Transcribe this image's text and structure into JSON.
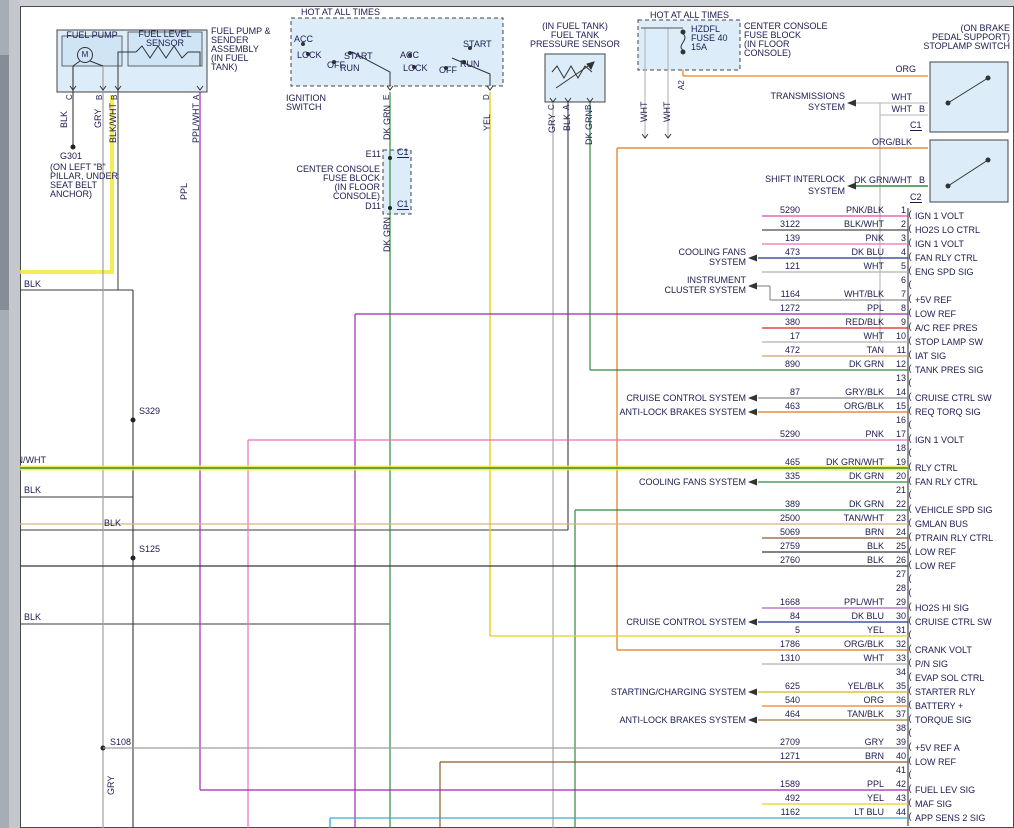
{
  "wire_colors": {
    "PNK/BLK": "#e8489c",
    "BLK/WHT": "#4a4a4a",
    "PNK": "#f06eb4",
    "DK BLU": "#20318d",
    "WHT": "#b0b0b0",
    "WHT/BLK": "#909090",
    "PPL": "#9c27b0",
    "RED/BLK": "#e02020",
    "TAN": "#cfa06a",
    "DK GRN": "#2e8b3d",
    "GRY/BLK": "#8a8a8a",
    "ORG/BLK": "#e07818",
    "DK GRN/WHT": "#2e8b3d",
    "TAN/WHT": "#dbb27e",
    "BRN": "#8a5a2a",
    "BLK": "#383838",
    "PPL/WHT": "#b45ec8",
    "YEL": "#e3d11f",
    "ORG": "#f08020",
    "YEL/BLK": "#cdbb1a",
    "TAN/BLK": "#a8803e",
    "GRY": "#9e9e9e",
    "LT BLU": "#35aede",
    "highlight": "#f0ea3c",
    "component_fill": "#d8eaf8",
    "text": "#1c1c50"
  },
  "fuel_assembly": {
    "pump_label": "FUEL PUMP",
    "motor": "M",
    "sensor_label_1": "FUEL LEVEL",
    "sensor_label_2": "SENSOR",
    "assembly_1": "FUEL PUMP &",
    "assembly_2": "SENDER",
    "assembly_3": "ASSEMBLY",
    "assembly_4": "(IN FUEL",
    "assembly_5": "TANK)",
    "pin_c": "C",
    "pin_b1": "B",
    "pin_b2": "B",
    "pin_a": "A",
    "w_blk": "BLK",
    "w_gry": "GRY",
    "w_blkwht": "BLK/WHT",
    "w_pplwht": "PPL/WHT",
    "w_ppl": "PPL",
    "ground_id": "G301",
    "ground_1": "(ON LEFT \"B\"",
    "ground_2": "PILLAR, UNDER",
    "ground_3": "SEAT BELT",
    "ground_4": "ANCHOR)"
  },
  "ignition": {
    "hot": "HOT AT ALL TIMES",
    "acc1": "ACC",
    "lock1": "LOCK",
    "off1": "OFF",
    "start1": "START",
    "run1": "RUN",
    "acc2": "ACC",
    "lock2": "LOCK",
    "off2": "OFF",
    "run2": "RUN",
    "start2": "START",
    "label_1": "IGNITION",
    "label_2": "SWITCH",
    "pin_e": "E",
    "pin_d": "D",
    "w_dkgrn": "DK GRN",
    "w_yel": "YEL"
  },
  "mid_fuse": {
    "l1": "CENTER CONSOLE",
    "l2": "FUSE BLOCK",
    "l3": "(IN FLOOR",
    "l4": "CONSOLE)",
    "e11": "E11",
    "c1_top": "C1",
    "d11": "D11",
    "c1_bot": "C1",
    "w_dkgrn": "DK GRN"
  },
  "pressure_sensor": {
    "l1": "(IN FUEL TANK)",
    "l2": "FUEL TANK",
    "l3": "PRESSURE SENSOR",
    "pin_c": "C",
    "pin_a": "A",
    "pin_b": "B",
    "w_gry": "GRY",
    "w_blk": "BLK",
    "w_dkgrn": "DK GRN"
  },
  "top_fuse": {
    "hot": "HOT AT ALL TIMES",
    "f1": "HZDFL",
    "f2": "FUSE 40",
    "f3": "15A",
    "l1": "CENTER CONSOLE",
    "l2": "FUSE BLOCK",
    "l3": "(IN FLOOR",
    "l4": "CONSOLE)",
    "w_wht1": "WHT",
    "w_wht2": "WHT",
    "pin_a2": "A2",
    "w_org": "ORG"
  },
  "stoplamp": {
    "l1": "(ON BRAKE",
    "l2": "PEDAL SUPPORT)",
    "l3": "STOPLAMP SWITCH",
    "w_wht1": "WHT",
    "w_wht2": "WHT",
    "pin_b1": "B",
    "c1": "C1",
    "w_orgblk": "ORG/BLK",
    "w_dkgrnwht": "DK GRN/WHT",
    "pin_b2": "B",
    "c2": "C2"
  },
  "arrows_top": {
    "trans_1": "TRANSMISSIONS",
    "trans_2": "SYSTEM",
    "shift_1": "SHIFT INTERLOCK",
    "shift_2": "SYSTEM"
  },
  "splices": {
    "s329": "S329",
    "s125": "S125",
    "s108": "S108",
    "s108_wire": "GRY"
  },
  "edge_labels": {
    "blk1": "BLK",
    "grnwht": "GRN/WHT",
    "blk2": "BLK",
    "blk3": "BLK",
    "blk4": "BLK"
  },
  "system_arrows": [
    {
      "l1": "COOLING FANS",
      "l2": "SYSTEM"
    },
    {
      "l1": "INSTRUMENT",
      "l2": "CLUSTER SYSTEM"
    },
    {
      "l1": "CRUISE CONTROL SYSTEM"
    },
    {
      "l1": "ANTI-LOCK BRAKES SYSTEM"
    },
    {
      "l1": "COOLING FANS SYSTEM"
    },
    {
      "l1": "CRUISE CONTROL SYSTEM"
    },
    {
      "l1": "STARTING/CHARGING SYSTEM"
    },
    {
      "l1": "ANTI-LOCK BRAKES SYSTEM"
    }
  ],
  "pcm_rows": [
    {
      "pin": "1",
      "wire": "5290",
      "color": "PNK/BLK",
      "signal": "IGN 1 VOLT"
    },
    {
      "pin": "2",
      "wire": "3122",
      "color": "BLK/WHT",
      "signal": "HO2S LO CTRL"
    },
    {
      "pin": "3",
      "wire": "139",
      "color": "PNK",
      "signal": "IGN 1 VOLT"
    },
    {
      "pin": "4",
      "wire": "473",
      "color": "DK BLU",
      "signal": "FAN RLY CTRL"
    },
    {
      "pin": "5",
      "wire": "121",
      "color": "WHT",
      "signal": "ENG SPD SIG"
    },
    {
      "pin": "6"
    },
    {
      "pin": "7",
      "wire": "1164",
      "color": "WHT/BLK",
      "signal": "+5V REF"
    },
    {
      "pin": "8",
      "wire": "1272",
      "color": "PPL",
      "signal": "LOW REF"
    },
    {
      "pin": "9",
      "wire": "380",
      "color": "RED/BLK",
      "signal": "A/C REF PRES"
    },
    {
      "pin": "10",
      "wire": "17",
      "color": "WHT",
      "signal": "STOP LAMP SW"
    },
    {
      "pin": "11",
      "wire": "472",
      "color": "TAN",
      "signal": "IAT SIG"
    },
    {
      "pin": "12",
      "wire": "890",
      "color": "DK GRN",
      "signal": "TANK PRES SIG"
    },
    {
      "pin": "13"
    },
    {
      "pin": "14",
      "wire": "87",
      "color": "GRY/BLK",
      "signal": "CRUISE CTRL SW"
    },
    {
      "pin": "15",
      "wire": "463",
      "color": "ORG/BLK",
      "signal": "REQ TORQ SIG"
    },
    {
      "pin": "16"
    },
    {
      "pin": "17",
      "wire": "5290",
      "color": "PNK",
      "signal": "IGN 1 VOLT"
    },
    {
      "pin": "18"
    },
    {
      "pin": "19",
      "wire": "465",
      "color": "DK GRN/WHT",
      "signal": "RLY CTRL"
    },
    {
      "pin": "20",
      "wire": "335",
      "color": "DK GRN",
      "signal": "FAN RLY CTRL"
    },
    {
      "pin": "21"
    },
    {
      "pin": "22",
      "wire": "389",
      "color": "DK GRN",
      "signal": "VEHICLE SPD SIG"
    },
    {
      "pin": "23",
      "wire": "2500",
      "color": "TAN/WHT",
      "signal": "GMLAN BUS"
    },
    {
      "pin": "24",
      "wire": "5069",
      "color": "BRN",
      "signal": "PTRAIN RLY CTRL"
    },
    {
      "pin": "25",
      "wire": "2759",
      "color": "BLK",
      "signal": "LOW REF"
    },
    {
      "pin": "26",
      "wire": "2760",
      "color": "BLK",
      "signal": "LOW REF"
    },
    {
      "pin": "27"
    },
    {
      "pin": "28"
    },
    {
      "pin": "29",
      "wire": "1668",
      "color": "PPL/WHT",
      "signal": "HO2S HI SIG"
    },
    {
      "pin": "30",
      "wire": "84",
      "color": "DK BLU",
      "signal": "CRUISE CTRL SW"
    },
    {
      "pin": "31",
      "wire": "5",
      "color": "YEL"
    },
    {
      "pin": "32",
      "wire": "1786",
      "color": "ORG/BLK",
      "signal": "CRANK VOLT"
    },
    {
      "pin": "33",
      "wire": "1310",
      "color": "WHT",
      "signal": "P/N SIG"
    },
    {
      "pin": "34",
      "signal": "EVAP SOL CTRL"
    },
    {
      "pin": "35",
      "wire": "625",
      "color": "YEL/BLK",
      "signal": "STARTER RLY"
    },
    {
      "pin": "36",
      "wire": "540",
      "color": "ORG",
      "signal": "BATTERY +"
    },
    {
      "pin": "37",
      "wire": "464",
      "color": "TAN/BLK",
      "signal": "TORQUE SIG"
    },
    {
      "pin": "38"
    },
    {
      "pin": "39",
      "wire": "2709",
      "color": "GRY",
      "signal": "+5V REF A"
    },
    {
      "pin": "40",
      "wire": "1271",
      "color": "BRN",
      "signal": "LOW REF"
    },
    {
      "pin": "41"
    },
    {
      "pin": "42",
      "wire": "1589",
      "color": "PPL",
      "signal": "FUEL LEV SIG"
    },
    {
      "pin": "43",
      "wire": "492",
      "color": "YEL",
      "signal": "MAF SIG"
    },
    {
      "pin": "44",
      "wire": "1162",
      "color": "LT BLU",
      "signal": "APP SENS 2 SIG"
    }
  ]
}
